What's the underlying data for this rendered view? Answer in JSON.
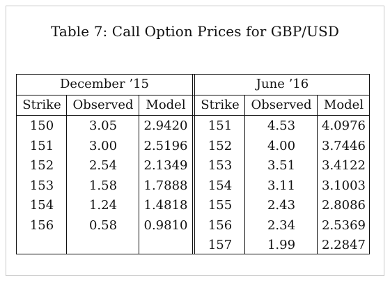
{
  "caption": "Table 7: Call Option Prices for GBP/USD",
  "groups": {
    "left": "December ’15",
    "right": "June ’16"
  },
  "headers": {
    "left": [
      "Strike",
      "Observed",
      "Model"
    ],
    "right": [
      "Strike",
      "Observed",
      "Model"
    ]
  },
  "left_rows": [
    [
      "150",
      "3.05",
      "2.9420"
    ],
    [
      "151",
      "3.00",
      "2.5196"
    ],
    [
      "152",
      "2.54",
      "2.1349"
    ],
    [
      "153",
      "1.58",
      "1.7888"
    ],
    [
      "154",
      "1.24",
      "1.4818"
    ],
    [
      "156",
      "0.58",
      "0.9810"
    ]
  ],
  "right_rows": [
    [
      "151",
      "4.53",
      "4.0976"
    ],
    [
      "152",
      "4.00",
      "3.7446"
    ],
    [
      "153",
      "3.51",
      "3.4122"
    ],
    [
      "154",
      "3.11",
      "3.1003"
    ],
    [
      "155",
      "2.43",
      "2.8086"
    ],
    [
      "156",
      "2.34",
      "2.5369"
    ],
    [
      "157",
      "1.99",
      "2.2847"
    ]
  ]
}
